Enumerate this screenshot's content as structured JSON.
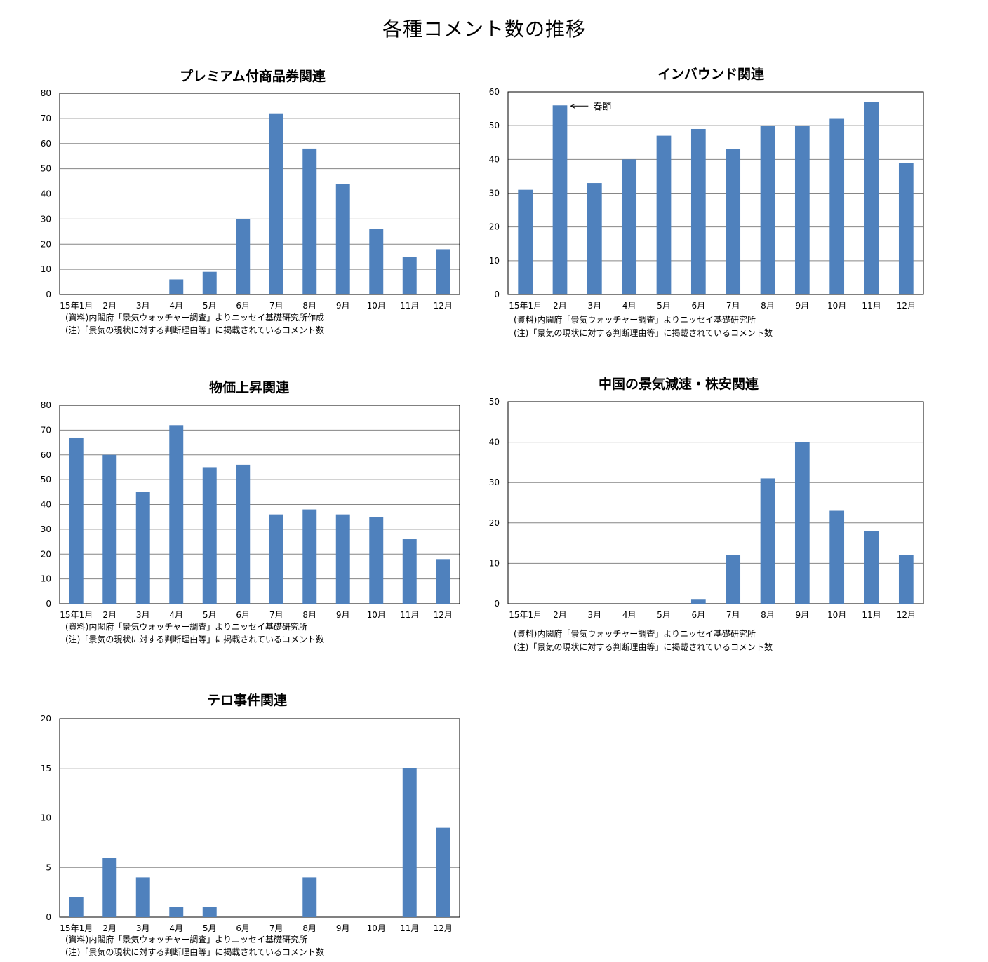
{
  "page_title": "各種コメント数の推移",
  "chart_data": [
    {
      "type": "bar",
      "title": "プレミアム付商品券関連",
      "categories": [
        "15年1月",
        "2月",
        "3月",
        "4月",
        "5月",
        "6月",
        "7月",
        "8月",
        "9月",
        "10月",
        "11月",
        "12月"
      ],
      "values": [
        0,
        0,
        0,
        6,
        9,
        30,
        72,
        58,
        44,
        26,
        15,
        18
      ],
      "ylim": [
        0,
        80
      ],
      "yticks": [
        "0",
        "10",
        "20",
        "30",
        "40",
        "50",
        "60",
        "70",
        "80"
      ],
      "grid": true,
      "color": "#4f81bd",
      "notes": [
        "(資料)内閣府「景気ウォッチャー調査」よりニッセイ基礎研究所作成",
        "(注)「景気の現状に対する判断理由等」に掲載されているコメント数"
      ]
    },
    {
      "type": "bar",
      "title": "インバウンド関連",
      "categories": [
        "15年1月",
        "2月",
        "3月",
        "4月",
        "5月",
        "6月",
        "7月",
        "8月",
        "9月",
        "10月",
        "11月",
        "12月"
      ],
      "values": [
        31,
        56,
        33,
        40,
        47,
        49,
        43,
        50,
        50,
        52,
        57,
        39
      ],
      "ylim": [
        0,
        60
      ],
      "yticks": [
        "0",
        "10",
        "20",
        "30",
        "40",
        "50",
        "60"
      ],
      "grid": true,
      "color": "#4f81bd",
      "annotation": {
        "text": "春節",
        "category_index": 1
      },
      "notes": [
        "(資料)内閣府「景気ウォッチャー調査」よりニッセイ基礎研究所",
        "(注)「景気の現状に対する判断理由等」に掲載されているコメント数"
      ]
    },
    {
      "type": "bar",
      "title": "物価上昇関連",
      "categories": [
        "15年1月",
        "2月",
        "3月",
        "4月",
        "5月",
        "6月",
        "7月",
        "8月",
        "9月",
        "10月",
        "11月",
        "12月"
      ],
      "values": [
        67,
        60,
        45,
        72,
        55,
        56,
        36,
        38,
        36,
        35,
        26,
        18
      ],
      "ylim": [
        0,
        80
      ],
      "yticks": [
        "0",
        "10",
        "20",
        "30",
        "40",
        "50",
        "60",
        "70",
        "80"
      ],
      "grid": true,
      "color": "#4f81bd",
      "notes": [
        "(資料)内閣府「景気ウォッチャー調査」よりニッセイ基礎研究所",
        "(注)「景気の現状に対する判断理由等」に掲載されているコメント数"
      ]
    },
    {
      "type": "bar",
      "title": "中国の景気減速・株安関連",
      "categories": [
        "15年1月",
        "2月",
        "3月",
        "4月",
        "5月",
        "6月",
        "7月",
        "8月",
        "9月",
        "10月",
        "11月",
        "12月"
      ],
      "values": [
        0,
        0,
        0,
        0,
        0,
        1,
        12,
        31,
        40,
        23,
        18,
        12
      ],
      "ylim": [
        0,
        50
      ],
      "yticks": [
        "0",
        "10",
        "20",
        "30",
        "40",
        "50"
      ],
      "grid": true,
      "color": "#4f81bd",
      "notes": [
        "(資料)内閣府「景気ウォッチャー調査」よりニッセイ基礎研究所",
        "(注)「景気の現状に対する判断理由等」に掲載されているコメント数"
      ]
    },
    {
      "type": "bar",
      "title": "テロ事件関連",
      "categories": [
        "15年1月",
        "2月",
        "3月",
        "4月",
        "5月",
        "6月",
        "7月",
        "8月",
        "9月",
        "10月",
        "11月",
        "12月"
      ],
      "values": [
        2,
        6,
        4,
        1,
        1,
        0,
        0,
        4,
        0,
        0,
        15,
        9
      ],
      "ylim": [
        0,
        20
      ],
      "yticks": [
        "0",
        "5",
        "10",
        "15",
        "20"
      ],
      "grid": true,
      "color": "#4f81bd",
      "notes": [
        "(資料)内閣府「景気ウォッチャー調査」よりニッセイ基礎研究所",
        "(注)「景気の現状に対する判断理由等」に掲載されているコメント数"
      ]
    }
  ]
}
